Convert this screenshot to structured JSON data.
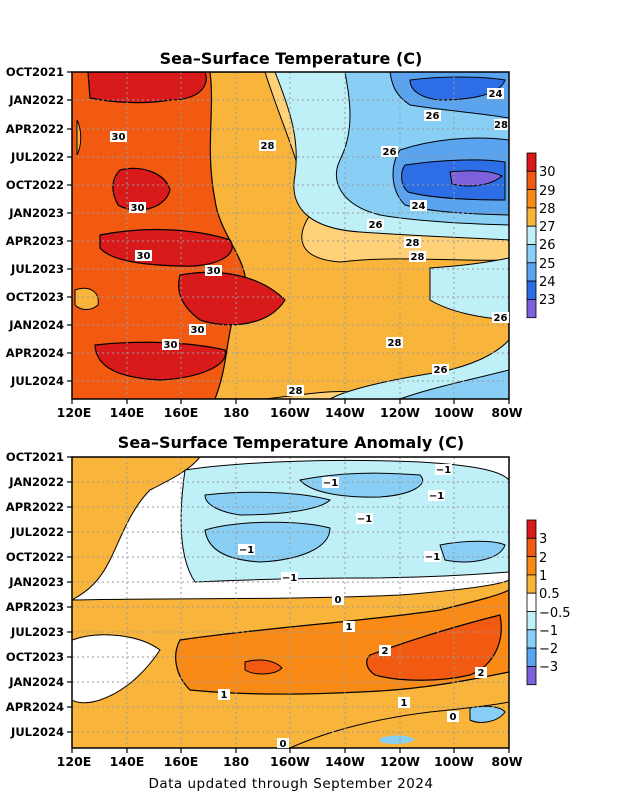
{
  "chart_data": [
    {
      "type": "heatmap",
      "title": "Sea–Surface Temperature (C)",
      "xlabel": "",
      "ylabel": "",
      "x_ticks": [
        "120E",
        "140E",
        "160E",
        "180",
        "160W",
        "140W",
        "120W",
        "100W",
        "80W"
      ],
      "y_ticks": [
        "OCT2021",
        "JAN2022",
        "APR2022",
        "JUL2022",
        "OCT2022",
        "JAN2023",
        "APR2023",
        "JUL2023",
        "OCT2023",
        "JAN2024",
        "APR2024",
        "JUL2024"
      ],
      "colorbar_ticks": [
        "30",
        "29",
        "28",
        "27",
        "26",
        "25",
        "24",
        "23"
      ],
      "colorbar_colors": [
        "#d91a1a",
        "#f25a12",
        "#f98a16",
        "#f9b43c",
        "#bff0f8",
        "#89cff5",
        "#5aa3ef",
        "#2d6ee6",
        "#7d61dc"
      ],
      "contour_labels": [
        "30",
        "30",
        "30",
        "30",
        "30",
        "30",
        "28",
        "28",
        "28",
        "28",
        "28",
        "26",
        "26",
        "26",
        "26",
        "26",
        "24",
        "24",
        "28"
      ],
      "grid": true,
      "legend": "right"
    },
    {
      "type": "heatmap",
      "title": "Sea–Surface Temperature Anomaly (C)",
      "xlabel": "",
      "ylabel": "",
      "x_ticks": [
        "120E",
        "140E",
        "160E",
        "180",
        "160W",
        "140W",
        "120W",
        "100W",
        "80W"
      ],
      "y_ticks": [
        "OCT2021",
        "JAN2022",
        "APR2022",
        "JUL2022",
        "OCT2022",
        "JAN2023",
        "APR2023",
        "JUL2023",
        "OCT2023",
        "JAN2024",
        "APR2024",
        "JUL2024"
      ],
      "colorbar_ticks": [
        "3",
        "2",
        "1",
        "0.5",
        "−0.5",
        "−1",
        "−2",
        "−3"
      ],
      "colorbar_colors": [
        "#d91a1a",
        "#f25a12",
        "#f98a16",
        "#f9b43c",
        "#ffffff",
        "#bff0f8",
        "#89cff5",
        "#5aa3ef",
        "#7d61dc"
      ],
      "contour_labels": [
        "−1",
        "−1",
        "−1",
        "−1",
        "−1",
        "−1",
        "−1",
        "0",
        "1",
        "2",
        "2",
        "1",
        "1",
        "0",
        "0"
      ],
      "grid": true,
      "legend": "right"
    }
  ],
  "footer": "Data updated through September 2024"
}
